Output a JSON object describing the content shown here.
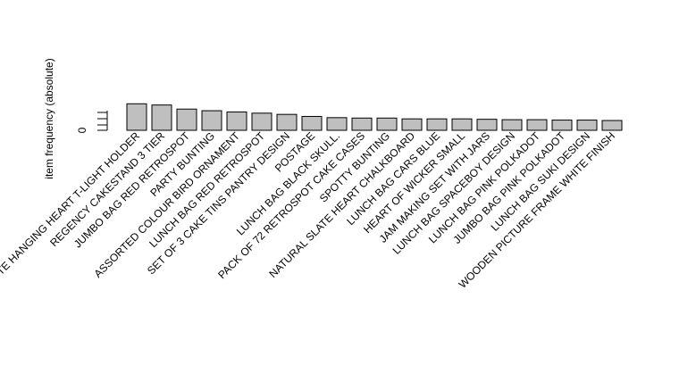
{
  "chart_data": {
    "type": "bar",
    "title": "",
    "ylabel": "item frequency (absolute)",
    "xlabel": "",
    "ylim": [
      0,
      7
    ],
    "y_ticks": [
      "0"
    ],
    "colors": {
      "bar": "#bfbfbf",
      "outline": "#000000"
    },
    "categories": [
      "WHITE HANGING HEART T-LIGHT HOLDER",
      "REGENCY CAKESTAND 3 TIER",
      "JUMBO BAG RED RETROSPOT",
      "PARTY BUNTING",
      "ASSORTED COLOUR BIRD ORNAMENT",
      "LUNCH BAG RED RETROSPOT",
      "SET OF 3 CAKE TINS PANTRY DESIGN",
      "POSTAGE",
      "LUNCH BAG BLACK SKULL.",
      "PACK OF 72 RETROSPOT CAKE CASES",
      "SPOTTY BUNTING",
      "NATURAL SLATE HEART CHALKBOARD",
      "LUNCH BAG CARS BLUE",
      "HEART OF WICKER SMALL",
      "JAM MAKING SET WITH JARS",
      "LUNCH BAG SPACEBOY DESIGN",
      "LUNCH BAG PINK POLKADOT",
      "JUMBO BAG PINK POLKADOT",
      "LUNCH BAG SUKI DESIGN",
      "WOODEN PICTURE FRAME WHITE FINISH"
    ],
    "values": [
      6.5,
      6.2,
      5.2,
      4.8,
      4.5,
      4.2,
      3.9,
      3.4,
      3.1,
      3.0,
      3.0,
      2.8,
      2.8,
      2.8,
      2.7,
      2.6,
      2.6,
      2.5,
      2.5,
      2.4
    ]
  }
}
